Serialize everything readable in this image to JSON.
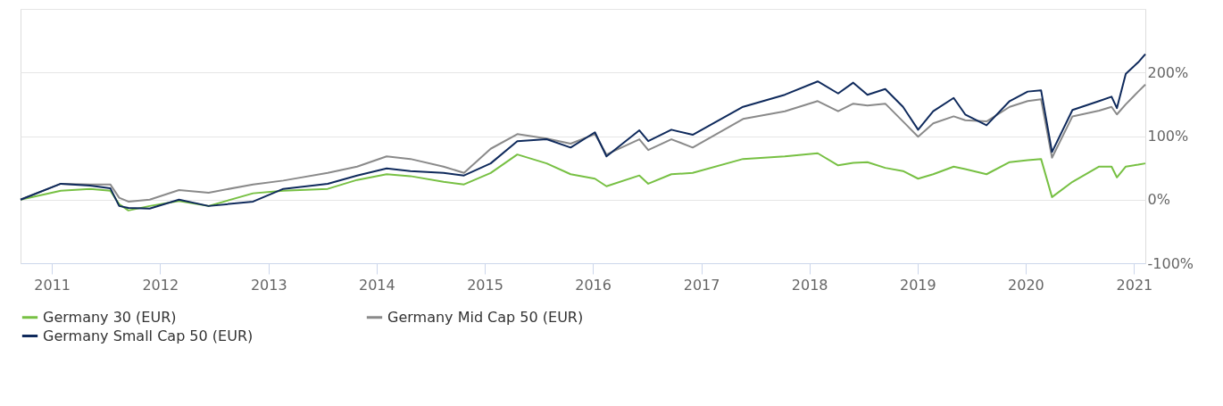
{
  "chart_data": {
    "type": "line",
    "x": [
      "2010-09-17",
      "2011-01-31",
      "2011-05-10",
      "2011-07-17",
      "2011-08-16",
      "2011-09-16",
      "2011-11-27",
      "2012-03-05",
      "2012-06-13",
      "2012-11-10",
      "2013-02-20",
      "2013-07-20",
      "2013-10-27",
      "2014-02-04",
      "2014-04-25",
      "2014-08-15",
      "2014-10-23",
      "2015-01-21",
      "2015-04-21",
      "2015-07-29",
      "2015-10-18",
      "2016-01-08",
      "2016-02-16",
      "2016-06-06",
      "2016-07-06",
      "2016-09-22",
      "2016-12-03",
      "2017-05-22",
      "2017-10-10",
      "2018-01-29",
      "2018-04-08",
      "2018-05-29",
      "2018-07-16",
      "2018-09-14",
      "2018-11-13",
      "2019-01-03",
      "2019-02-23",
      "2019-05-03",
      "2019-06-11",
      "2019-08-22",
      "2019-11-08",
      "2020-01-08",
      "2020-02-22",
      "2020-03-30",
      "2020-06-07",
      "2020-09-05",
      "2020-10-17",
      "2020-11-04",
      "2020-12-04",
      "2021-01-15",
      "2021-02-08"
    ],
    "series": [
      {
        "name": "Germany 30 (EUR)",
        "color": "#77c043",
        "values": [
          0,
          14,
          17,
          14,
          -7,
          -17,
          -10,
          -2,
          -10,
          10,
          14,
          17,
          31,
          40,
          37,
          28,
          24,
          42,
          71,
          57,
          40,
          33,
          21,
          38,
          25,
          40,
          42,
          64,
          68,
          73,
          54,
          58,
          59,
          50,
          45,
          33,
          40,
          52,
          48,
          40,
          59,
          62,
          64,
          4,
          28,
          52,
          52,
          35,
          52,
          55,
          57
        ]
      },
      {
        "name": "Germany Mid Cap 50 (EUR)",
        "color": "#8a8a8a",
        "values": [
          0,
          25,
          24,
          24,
          3,
          -3,
          0,
          15,
          11,
          24,
          30,
          42,
          52,
          68,
          64,
          52,
          42,
          80,
          103,
          96,
          88,
          103,
          71,
          95,
          78,
          95,
          82,
          127,
          139,
          155,
          139,
          151,
          148,
          151,
          123,
          99,
          120,
          131,
          125,
          123,
          146,
          155,
          158,
          66,
          131,
          140,
          146,
          134,
          150,
          170,
          181
        ]
      },
      {
        "name": "Germany Small Cap 50 (EUR)",
        "color": "#0f2a5c",
        "values": [
          0,
          25,
          22,
          18,
          -10,
          -13,
          -14,
          0,
          -10,
          -3,
          17,
          25,
          38,
          49,
          45,
          42,
          38,
          57,
          92,
          95,
          82,
          106,
          68,
          109,
          92,
          110,
          102,
          146,
          165,
          186,
          167,
          184,
          165,
          174,
          146,
          110,
          139,
          160,
          134,
          117,
          155,
          170,
          172,
          75,
          141,
          155,
          162,
          144,
          198,
          216,
          229
        ]
      }
    ],
    "xlim": [
      "2010-09-17",
      "2021-02-08"
    ],
    "xticks": [
      "2011",
      "2012",
      "2013",
      "2014",
      "2015",
      "2016",
      "2017",
      "2018",
      "2019",
      "2020",
      "2021"
    ],
    "ylim": [
      -100,
      300
    ],
    "yticks": [
      {
        "value": -100,
        "label": "-100%"
      },
      {
        "value": 0,
        "label": "0%"
      },
      {
        "value": 100,
        "label": "100%"
      },
      {
        "value": 200,
        "label": "200%"
      },
      {
        "value": 300,
        "label": null
      }
    ],
    "grid": "y",
    "legend": "bottom",
    "marker": "none",
    "line_style": "solid"
  }
}
